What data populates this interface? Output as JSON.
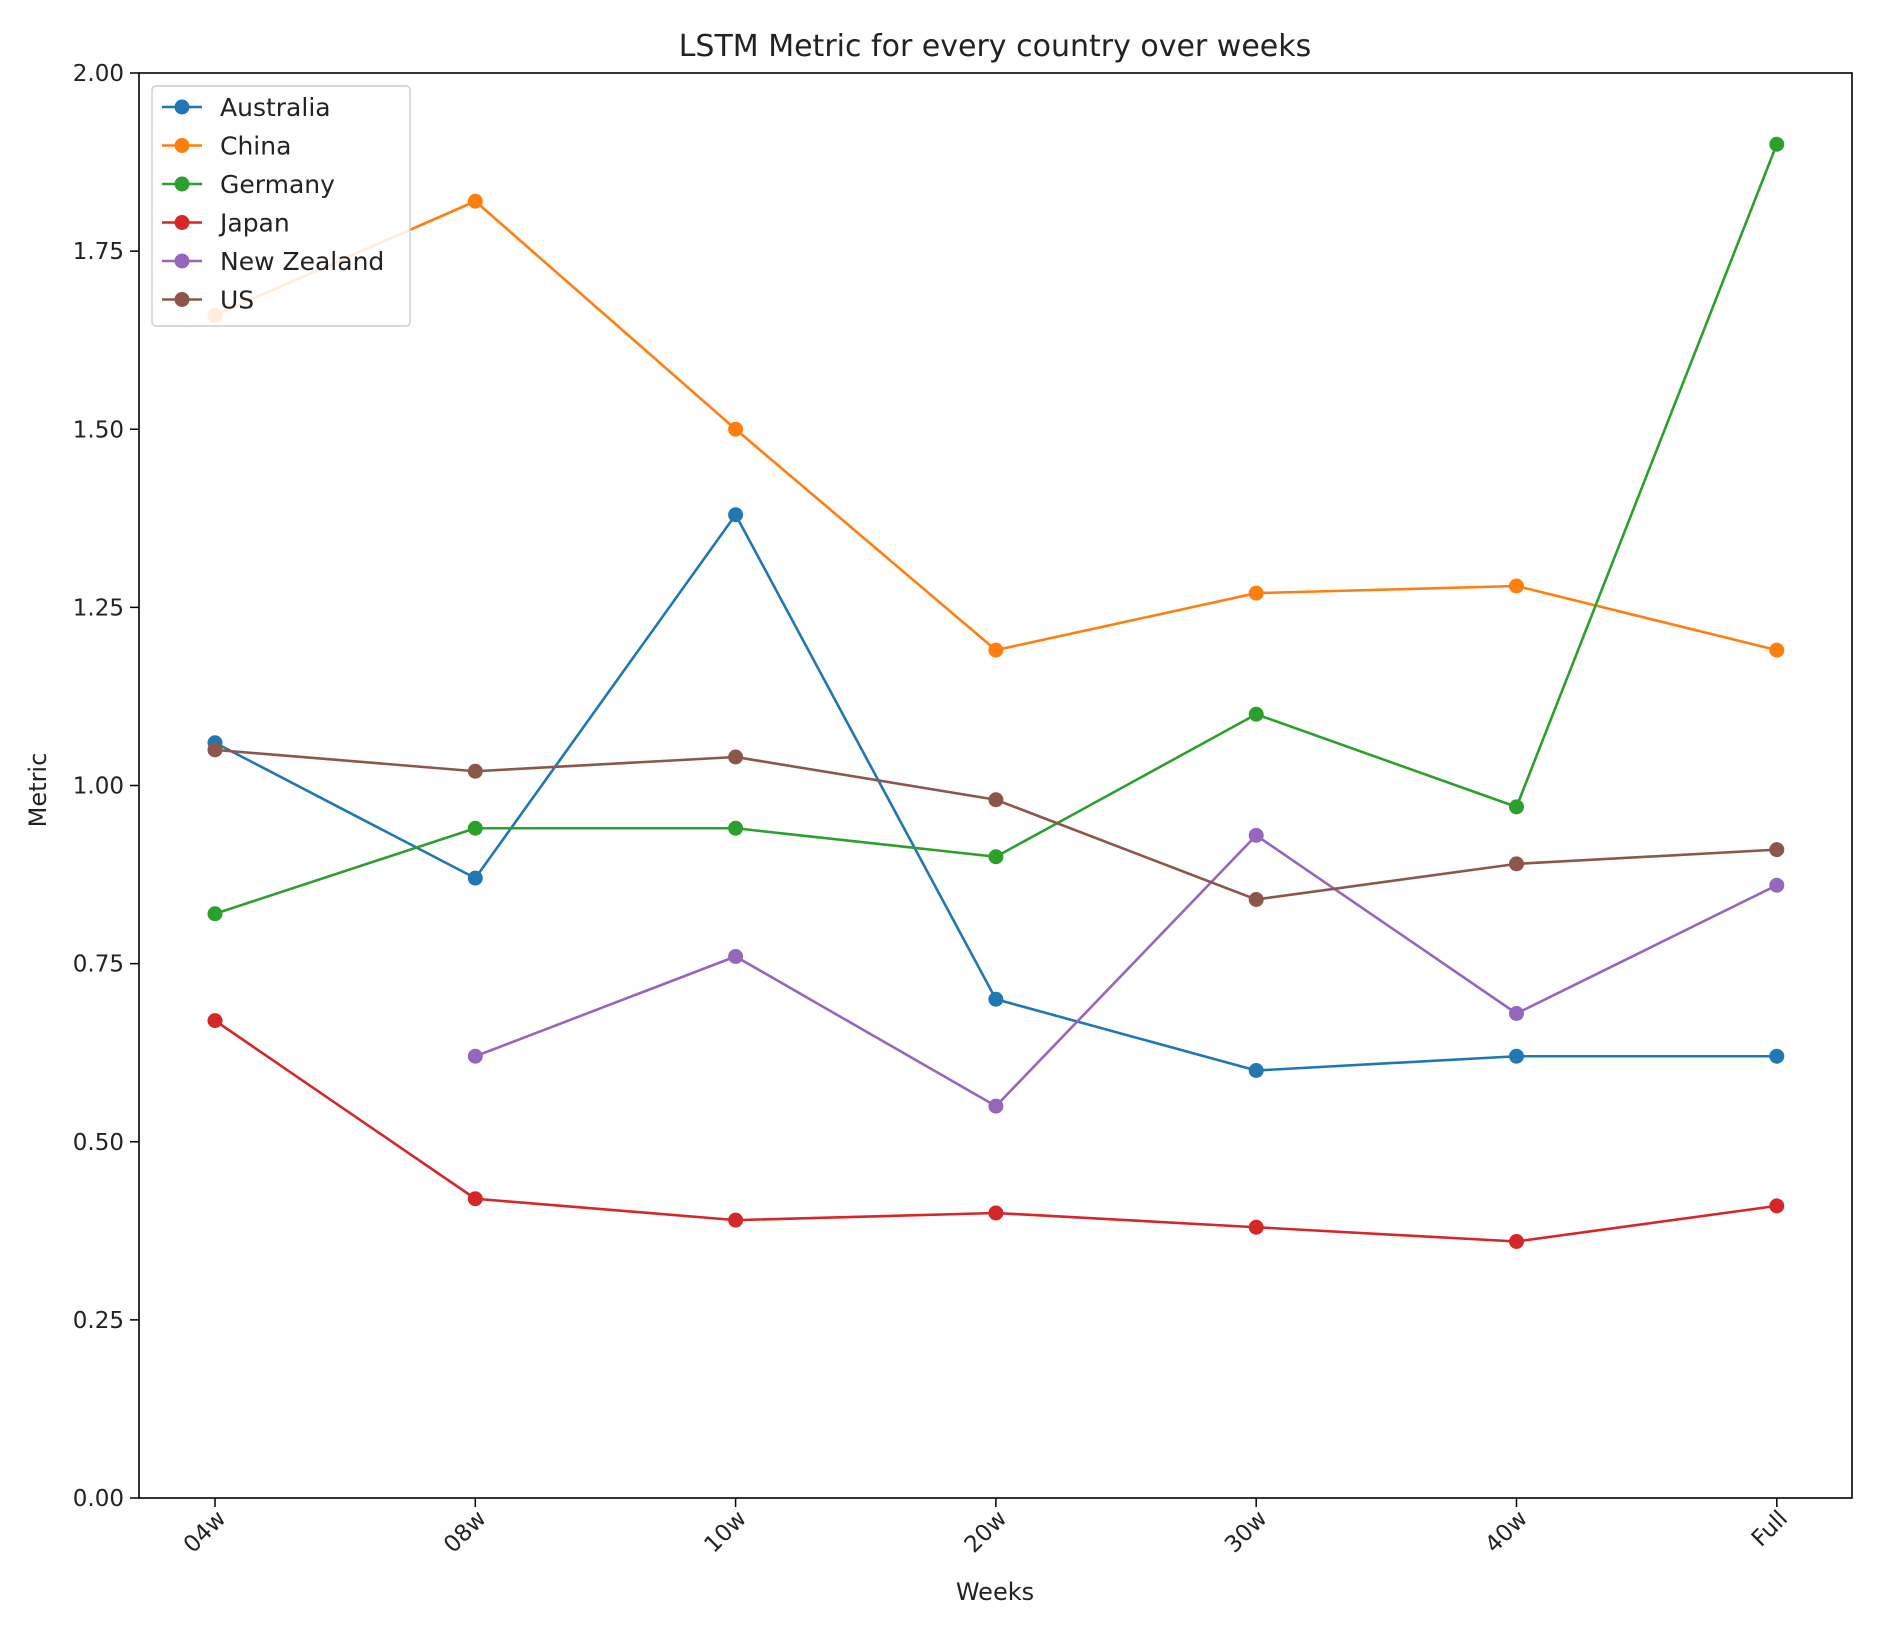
{
  "chart_data": {
    "type": "line",
    "title": "LSTM Metric for every country over weeks",
    "xlabel": "Weeks",
    "ylabel": "Metric",
    "categories": [
      "04w",
      "08w",
      "10w",
      "20w",
      "30w",
      "40w",
      "Full"
    ],
    "ylim": [
      0,
      2.0
    ],
    "yticks": [
      "0.00",
      "0.25",
      "0.50",
      "0.75",
      "1.00",
      "1.25",
      "1.50",
      "1.75",
      "2.00"
    ],
    "grid": false,
    "legend_position": "top-left",
    "series": [
      {
        "name": "Australia",
        "color": "#1f77b4",
        "values": [
          1.06,
          0.87,
          1.38,
          0.7,
          0.6,
          0.62,
          0.62
        ]
      },
      {
        "name": "China",
        "color": "#ff7f0e",
        "values": [
          1.66,
          1.82,
          1.5,
          1.19,
          1.27,
          1.28,
          1.19
        ]
      },
      {
        "name": "Germany",
        "color": "#2ca02c",
        "values": [
          0.82,
          0.94,
          0.94,
          0.9,
          1.1,
          0.97,
          1.9
        ]
      },
      {
        "name": "Japan",
        "color": "#d62728",
        "values": [
          0.67,
          0.42,
          0.39,
          0.4,
          0.38,
          0.36,
          0.41
        ]
      },
      {
        "name": "New Zealand",
        "color": "#9467bd",
        "values": [
          null,
          0.62,
          0.76,
          0.55,
          0.93,
          0.68,
          0.86
        ]
      },
      {
        "name": "US",
        "color": "#8c564b",
        "values": [
          1.05,
          1.02,
          1.04,
          0.98,
          0.84,
          0.89,
          0.91
        ]
      }
    ]
  }
}
